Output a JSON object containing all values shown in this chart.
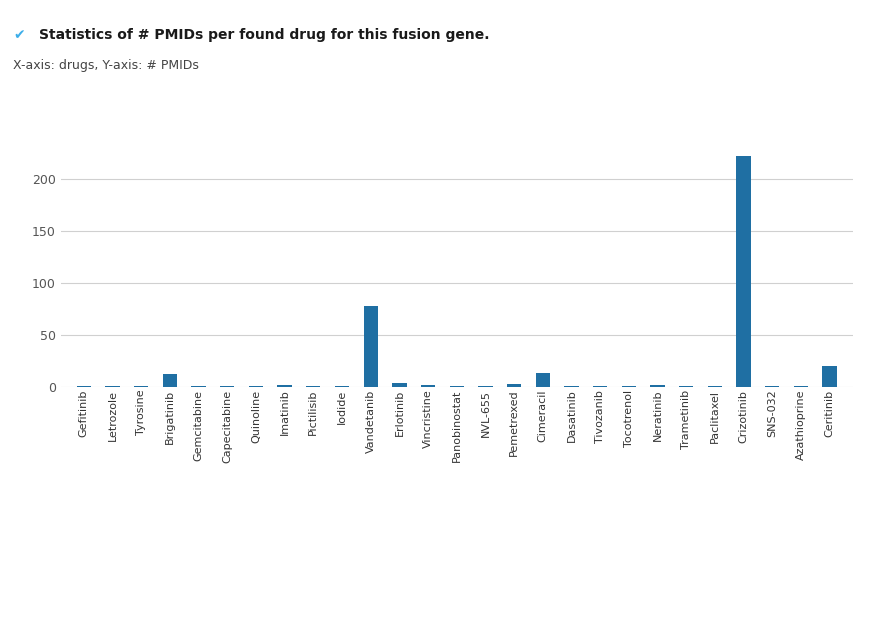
{
  "categories": [
    "Gefitinib",
    "Letrozole",
    "Tyrosine",
    "Brigatinib",
    "Gemcitabine",
    "Capecitabine",
    "Quinoline",
    "Imatinib",
    "Pictilisib",
    "Iodide",
    "Vandetanib",
    "Erlotinib",
    "Vincristine",
    "Panobinostat",
    "NVL-655",
    "Pemetrexed",
    "Cimeracil",
    "Dasatinib",
    "Tivozanib",
    "Tocotrenol",
    "Neratinib",
    "Trametinib",
    "Paclitaxel",
    "Crizotinib",
    "SNS-032",
    "Azathioprine",
    "Ceritinib"
  ],
  "values": [
    1,
    1,
    1,
    12,
    1,
    1,
    1,
    2,
    1,
    1,
    78,
    4,
    2,
    1,
    1,
    3,
    13,
    1,
    1,
    1,
    2,
    1,
    1,
    222,
    1,
    1,
    20
  ],
  "bar_color": "#1f6fa3",
  "checkmark_color": "#3daee9",
  "title_text": "Statistics of # PMIDs per found drug for this fusion gene.",
  "subtitle_text": "X-axis: drugs, Y-axis: # PMIDs",
  "title_color": "#1a1a1a",
  "subtitle_color": "#444444",
  "ylim": [
    0,
    240
  ],
  "yticks": [
    0,
    50,
    100,
    150,
    200
  ],
  "background_color": "#ffffff",
  "grid_color": "#d0d0d0"
}
